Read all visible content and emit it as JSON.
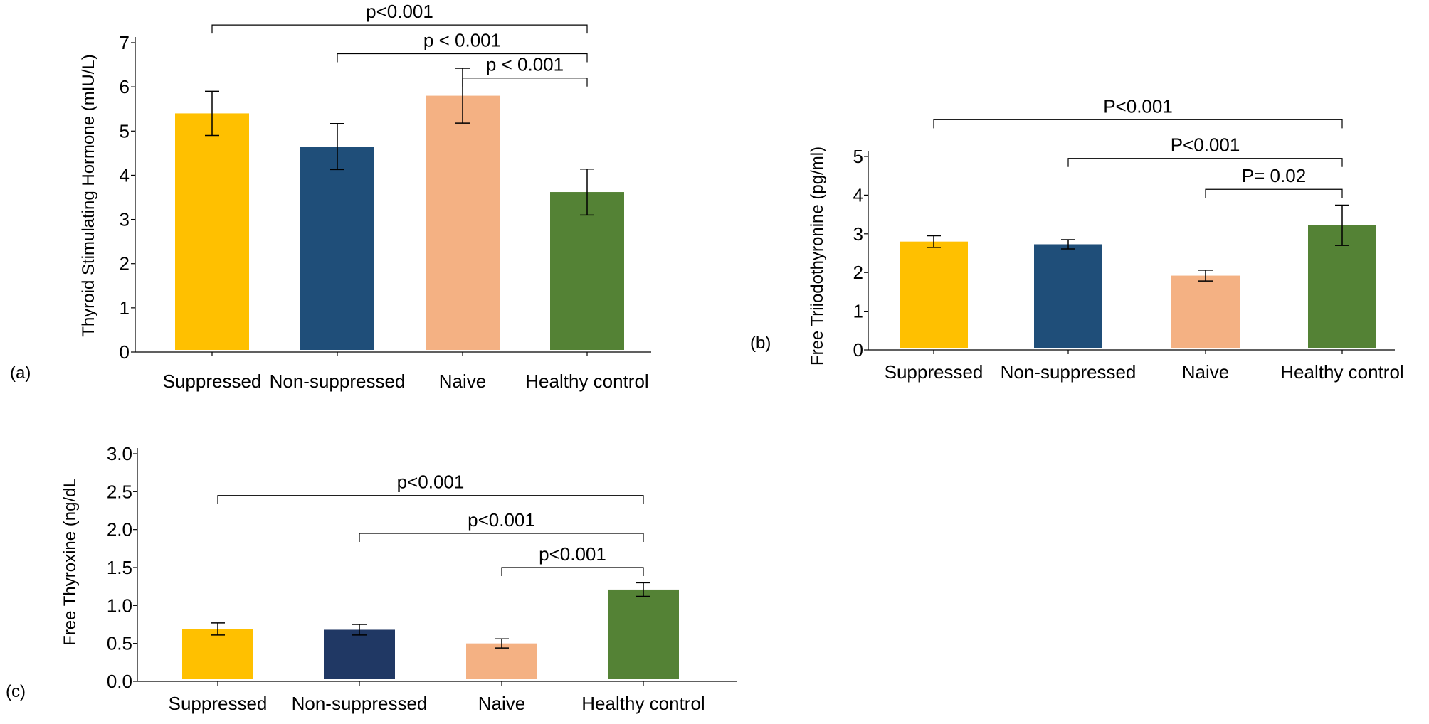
{
  "chart_data": [
    {
      "panel": "(a)",
      "type": "bar",
      "ylabel": "Thyroid Stimulating Hormone (mIU/L)",
      "ylim": [
        0,
        7
      ],
      "yticks": [
        "0",
        "1",
        "2",
        "3",
        "4",
        "5",
        "6",
        "7"
      ],
      "ytick_values": [
        0,
        1,
        2,
        3,
        4,
        5,
        6,
        7
      ],
      "categories": [
        "Suppressed",
        "Non-suppressed",
        "Naive",
        "Healthy control"
      ],
      "values": [
        5.4,
        4.65,
        5.8,
        3.62
      ],
      "errors": [
        0.5,
        0.52,
        0.62,
        0.52
      ],
      "colors": [
        "#FFC000",
        "#1F4E79",
        "#F4B183",
        "#548235"
      ],
      "comparisons": [
        {
          "from": 0,
          "to": 3,
          "label": "p<0.001",
          "level": 7.4
        },
        {
          "from": 1,
          "to": 3,
          "label": "p < 0.001",
          "level": 6.75
        },
        {
          "from": 2,
          "to": 3,
          "label": "p < 0.001",
          "level": 6.2
        }
      ]
    },
    {
      "panel": "(b)",
      "type": "bar",
      "ylabel": "Free Triiodothyronine (pg/ml)",
      "ylim": [
        0,
        5
      ],
      "yticks": [
        "0",
        "1",
        "2",
        "3",
        "4",
        "5"
      ],
      "ytick_values": [
        0,
        1,
        2,
        3,
        4,
        5
      ],
      "categories": [
        "Suppressed",
        "Non-suppressed",
        "Naive",
        "Healthy control"
      ],
      "values": [
        2.8,
        2.73,
        1.92,
        3.22
      ],
      "errors": [
        0.15,
        0.12,
        0.14,
        0.52
      ],
      "colors": [
        "#FFC000",
        "#1F4E79",
        "#F4B183",
        "#548235"
      ],
      "comparisons": [
        {
          "from": 0,
          "to": 3,
          "label": "P<0.001",
          "level": 5.95
        },
        {
          "from": 1,
          "to": 3,
          "label": "P<0.001",
          "level": 4.95
        },
        {
          "from": 2,
          "to": 3,
          "label": "P= 0.02",
          "level": 4.15
        }
      ]
    },
    {
      "panel": "(c)",
      "type": "bar",
      "ylabel": "Free Thyroxine (ng/dL",
      "ylim": [
        0,
        3
      ],
      "yticks": [
        "0.0",
        "0.5",
        "1.0",
        "1.5",
        "2.0",
        "2.5",
        "3.0"
      ],
      "ytick_values": [
        0,
        0.5,
        1,
        1.5,
        2,
        2.5,
        3
      ],
      "categories": [
        "Suppressed",
        "Non-suppressed",
        "Naive",
        "Healthy control"
      ],
      "values": [
        0.69,
        0.68,
        0.5,
        1.21
      ],
      "errors": [
        0.08,
        0.07,
        0.06,
        0.09
      ],
      "colors": [
        "#FFC000",
        "#203864",
        "#F4B183",
        "#548235"
      ],
      "comparisons": [
        {
          "from": 0,
          "to": 3,
          "label": "p<0.001",
          "level": 2.45
        },
        {
          "from": 1,
          "to": 3,
          "label": "p<0.001",
          "level": 1.95
        },
        {
          "from": 2,
          "to": 3,
          "label": "p<0.001",
          "level": 1.5
        }
      ]
    }
  ]
}
